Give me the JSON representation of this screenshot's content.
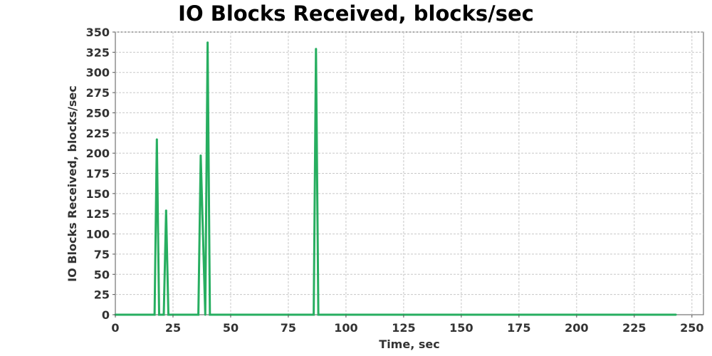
{
  "chart_data": {
    "type": "line",
    "title": "IO Blocks Received, blocks/sec",
    "xlabel": "Time, sec",
    "ylabel": "IO Blocks Received, blocks/sec",
    "xlim": [
      0,
      255
    ],
    "ylim": [
      0,
      350
    ],
    "x_ticks": [
      0,
      25,
      50,
      75,
      100,
      125,
      150,
      175,
      200,
      225,
      250
    ],
    "y_ticks": [
      0,
      25,
      50,
      75,
      100,
      125,
      150,
      175,
      200,
      225,
      250,
      275,
      300,
      325,
      350
    ],
    "grid": true,
    "legend": "none",
    "series": [
      {
        "color": "#27ae60",
        "x": [
          0,
          17,
          18,
          19,
          21,
          22,
          23,
          36,
          37,
          39,
          40,
          41,
          86,
          87,
          88,
          243
        ],
        "y": [
          0,
          0,
          217,
          0,
          0,
          129,
          0,
          0,
          197,
          0,
          337,
          0,
          0,
          329,
          0,
          0
        ]
      }
    ]
  }
}
